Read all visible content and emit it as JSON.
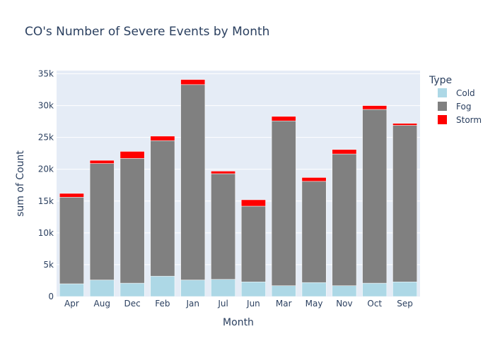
{
  "chart_data": {
    "type": "bar",
    "stacked": true,
    "title": "CO's Number of Severe Events by Month",
    "xlabel": "Month",
    "ylabel": "sum of Count",
    "categories": [
      "Apr",
      "Aug",
      "Dec",
      "Feb",
      "Jan",
      "Jul",
      "Jun",
      "Mar",
      "May",
      "Nov",
      "Oct",
      "Sep"
    ],
    "ylim": [
      0,
      35500
    ],
    "yticks": [
      0,
      5000,
      10000,
      15000,
      20000,
      25000,
      30000,
      35000
    ],
    "ytick_labels": [
      "0",
      "5k",
      "10k",
      "15k",
      "20k",
      "25k",
      "30k",
      "35k"
    ],
    "legend": {
      "title": "Type",
      "position": "right"
    },
    "grid": true,
    "series": [
      {
        "name": "Cold",
        "color": "#add8e6",
        "values": [
          2000,
          2600,
          2100,
          3200,
          2600,
          2700,
          2300,
          1700,
          2200,
          1700,
          2100,
          2300
        ]
      },
      {
        "name": "Fog",
        "color": "#808080",
        "values": [
          13600,
          18300,
          19600,
          21300,
          30700,
          16600,
          11900,
          25900,
          15900,
          20700,
          27300,
          24600
        ]
      },
      {
        "name": "Storm",
        "color": "#ff0000",
        "values": [
          600,
          500,
          1100,
          700,
          800,
          400,
          1000,
          700,
          600,
          700,
          600,
          300
        ]
      }
    ]
  }
}
